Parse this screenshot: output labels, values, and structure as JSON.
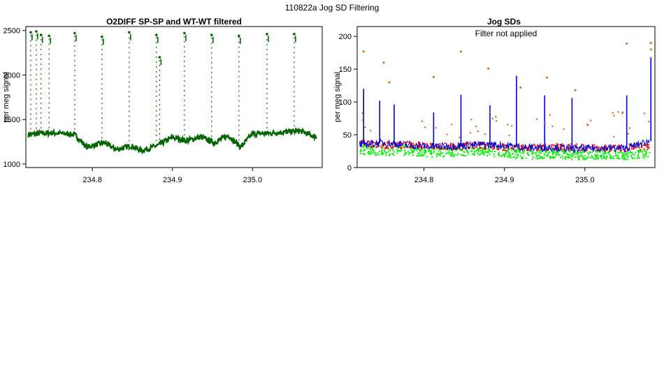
{
  "page_title": "110822a   Jog SD Filtering",
  "chart_data": [
    {
      "type": "scatter",
      "title": "O2DIFF SP-SP and WT-WT filtered",
      "xlabel": "",
      "ylabel": "per meg signal",
      "xlim": [
        234.717,
        235.087
      ],
      "ylim": [
        960,
        2545
      ],
      "xticks": [
        234.8,
        234.9,
        235.0
      ],
      "yticks": [
        1000,
        1500,
        2000,
        2500
      ],
      "color": "#006400",
      "segments": [
        {
          "name": "sp-sp",
          "x": [
            234.72,
            234.735,
            234.752,
            234.778,
            234.793,
            234.815,
            234.83,
            234.848,
            234.862,
            234.882,
            234.9,
            234.918,
            234.935,
            234.952,
            234.97,
            234.985,
            235.0,
            235.02,
            235.04,
            235.06,
            235.08
          ],
          "y": [
            1330,
            1345,
            1350,
            1330,
            1190,
            1240,
            1160,
            1205,
            1150,
            1210,
            1300,
            1260,
            1305,
            1240,
            1320,
            1190,
            1340,
            1345,
            1360,
            1370,
            1300
          ]
        },
        {
          "name": "spike-tops",
          "x": [
            234.723,
            234.73,
            234.736,
            234.746,
            234.778,
            234.812,
            234.846,
            234.88,
            234.884,
            234.915,
            234.949,
            234.983,
            235.018,
            235.052
          ],
          "y": [
            2480,
            2490,
            2450,
            2440,
            2470,
            2430,
            2480,
            2450,
            2200,
            2470,
            2450,
            2440,
            2460,
            2460
          ]
        }
      ]
    },
    {
      "type": "scatter",
      "title": "Jog SDs",
      "annotation": "Filter not applied",
      "xlabel": "",
      "ylabel": "per meg signal",
      "xlim": [
        234.717,
        235.087
      ],
      "ylim": [
        0,
        215
      ],
      "xticks": [
        234.8,
        234.9,
        235.0
      ],
      "yticks": [
        0,
        50,
        100,
        150,
        200
      ],
      "series": [
        {
          "name": "sd-line",
          "color": "#0000cc",
          "style": "line",
          "x": [
            234.72,
            234.75,
            234.78,
            234.81,
            234.84,
            234.87,
            234.9,
            234.93,
            234.96,
            234.99,
            235.02,
            235.05,
            235.08
          ],
          "y": [
            35,
            38,
            34,
            32,
            33,
            35,
            34,
            30,
            31,
            28,
            30,
            29,
            40
          ]
        },
        {
          "name": "sd-peaks",
          "color": "#0000cc",
          "style": "spike",
          "x": [
            234.725,
            234.745,
            234.763,
            234.812,
            234.846,
            234.882,
            234.915,
            234.95,
            234.984,
            235.052,
            235.082
          ],
          "y": [
            120,
            102,
            96,
            84,
            111,
            95,
            140,
            110,
            106,
            110,
            168
          ]
        },
        {
          "name": "filtered-red",
          "color": "#ff0000",
          "style": "band",
          "x": [
            234.72,
            234.75,
            234.78,
            234.81,
            234.84,
            234.87,
            234.9,
            234.93,
            234.96,
            234.99,
            235.02,
            235.05,
            235.08
          ],
          "y": [
            38,
            35,
            36,
            34,
            33,
            35,
            32,
            31,
            33,
            32,
            30,
            31,
            34
          ]
        },
        {
          "name": "accepted-green",
          "color": "#00ee00",
          "style": "band",
          "x": [
            234.72,
            234.75,
            234.78,
            234.81,
            234.84,
            234.87,
            234.9,
            234.93,
            234.96,
            234.99,
            235.02,
            235.05,
            235.08
          ],
          "y": [
            28,
            26,
            27,
            24,
            25,
            27,
            23,
            21,
            22,
            20,
            21,
            20,
            22
          ]
        },
        {
          "name": "outliers-orange",
          "color": "#d2691e",
          "style": "points",
          "x": [
            234.725,
            234.75,
            234.757,
            234.812,
            234.846,
            234.88,
            234.92,
            234.953,
            234.988,
            235.052,
            235.082,
            235.082
          ],
          "y": [
            177,
            160,
            130,
            138,
            177,
            151,
            122,
            137,
            118,
            189,
            190,
            180
          ]
        }
      ]
    }
  ]
}
